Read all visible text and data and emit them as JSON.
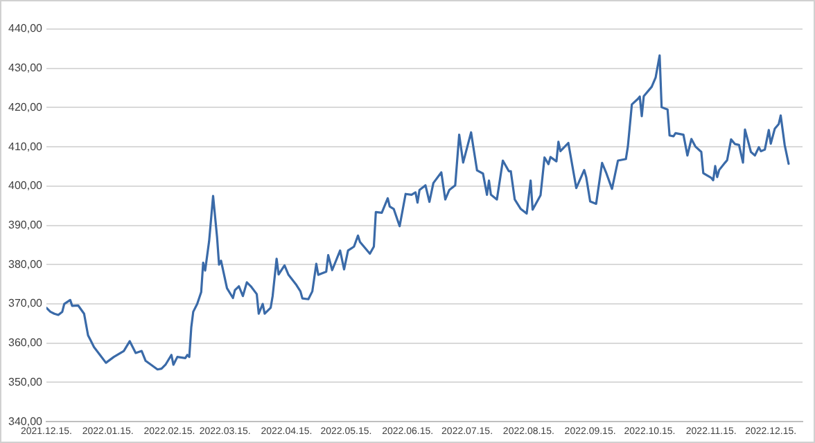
{
  "chart_data": {
    "type": "line",
    "grid": "y",
    "marker": "none",
    "line_style": "solid",
    "xlim": [
      "2021-12-15",
      "2022-12-31"
    ],
    "xticks": [
      {
        "value": "2021-12-15",
        "label": "2021.12.15."
      },
      {
        "value": "2022-01-15",
        "label": "2022.01.15."
      },
      {
        "value": "2022-02-15",
        "label": "2022.02.15."
      },
      {
        "value": "2022-03-15",
        "label": "2022.03.15."
      },
      {
        "value": "2022-04-15",
        "label": "2022.04.15."
      },
      {
        "value": "2022-05-15",
        "label": "2022.05.15."
      },
      {
        "value": "2022-06-15",
        "label": "2022.06.15."
      },
      {
        "value": "2022-07-15",
        "label": "2022.07.15."
      },
      {
        "value": "2022-08-15",
        "label": "2022.08.15."
      },
      {
        "value": "2022-09-15",
        "label": "2022.09.15."
      },
      {
        "value": "2022-10-15",
        "label": "2022.10.15."
      },
      {
        "value": "2022-11-15",
        "label": "2022.11.15."
      },
      {
        "value": "2022-12-15",
        "label": "2022.12.15."
      }
    ],
    "ylim": [
      340,
      440
    ],
    "yticks": [
      {
        "value": 340,
        "label": "340,00"
      },
      {
        "value": 350,
        "label": "350,00"
      },
      {
        "value": 360,
        "label": "360,00"
      },
      {
        "value": 370,
        "label": "370,00"
      },
      {
        "value": 380,
        "label": "380,00"
      },
      {
        "value": 390,
        "label": "390,00"
      },
      {
        "value": 400,
        "label": "400,00"
      },
      {
        "value": 410,
        "label": "410,00"
      },
      {
        "value": 420,
        "label": "420,00"
      },
      {
        "value": 430,
        "label": "430,00"
      },
      {
        "value": 440,
        "label": "440,00"
      }
    ],
    "x": [
      "2021-12-15",
      "2021-12-17",
      "2021-12-19",
      "2021-12-21",
      "2021-12-23",
      "2021-12-24",
      "2021-12-27",
      "2021-12-28",
      "2021-12-31",
      "2022-01-03",
      "2022-01-05",
      "2022-01-06",
      "2022-01-08",
      "2022-01-11",
      "2022-01-14",
      "2022-01-18",
      "2022-01-23",
      "2022-01-26",
      "2022-01-29",
      "2022-02-01",
      "2022-02-03",
      "2022-02-09",
      "2022-02-11",
      "2022-02-13",
      "2022-02-16",
      "2022-02-17",
      "2022-02-19",
      "2022-02-23",
      "2022-02-24",
      "2022-02-25",
      "2022-02-26",
      "2022-02-27",
      "2022-03-01",
      "2022-03-03",
      "2022-03-04",
      "2022-03-05",
      "2022-03-07",
      "2022-03-09",
      "2022-03-11",
      "2022-03-12",
      "2022-03-13",
      "2022-03-16",
      "2022-03-19",
      "2022-03-20",
      "2022-03-22",
      "2022-03-24",
      "2022-03-26",
      "2022-03-28",
      "2022-03-31",
      "2022-04-01",
      "2022-04-03",
      "2022-04-04",
      "2022-04-07",
      "2022-04-08",
      "2022-04-10",
      "2022-04-11",
      "2022-04-14",
      "2022-04-16",
      "2022-04-20",
      "2022-04-22",
      "2022-04-23",
      "2022-04-26",
      "2022-04-28",
      "2022-04-30",
      "2022-05-01",
      "2022-05-05",
      "2022-05-06",
      "2022-05-08",
      "2022-05-12",
      "2022-05-14",
      "2022-05-16",
      "2022-05-19",
      "2022-05-21",
      "2022-05-22",
      "2022-05-27",
      "2022-05-29",
      "2022-05-30",
      "2022-06-02",
      "2022-06-05",
      "2022-06-06",
      "2022-06-08",
      "2022-06-11",
      "2022-06-14",
      "2022-06-17",
      "2022-06-19",
      "2022-06-20",
      "2022-06-21",
      "2022-06-24",
      "2022-06-26",
      "2022-06-28",
      "2022-07-02",
      "2022-07-04",
      "2022-07-06",
      "2022-07-09",
      "2022-07-11",
      "2022-07-13",
      "2022-07-17",
      "2022-07-18",
      "2022-07-20",
      "2022-07-23",
      "2022-07-25",
      "2022-07-26",
      "2022-07-27",
      "2022-07-30",
      "2022-08-02",
      "2022-08-05",
      "2022-08-06",
      "2022-08-08",
      "2022-08-11",
      "2022-08-14",
      "2022-08-16",
      "2022-08-17",
      "2022-08-21",
      "2022-08-23",
      "2022-08-25",
      "2022-08-26",
      "2022-08-29",
      "2022-08-30",
      "2022-08-31",
      "2022-09-04",
      "2022-09-08",
      "2022-09-12",
      "2022-09-13",
      "2022-09-15",
      "2022-09-18",
      "2022-09-21",
      "2022-09-23",
      "2022-09-26",
      "2022-09-29",
      "2022-10-03",
      "2022-10-04",
      "2022-10-06",
      "2022-10-09",
      "2022-10-10",
      "2022-10-11",
      "2022-10-12",
      "2022-10-16",
      "2022-10-18",
      "2022-10-20",
      "2022-10-21",
      "2022-10-24",
      "2022-10-25",
      "2022-10-27",
      "2022-10-28",
      "2022-11-01",
      "2022-11-03",
      "2022-11-05",
      "2022-11-07",
      "2022-11-10",
      "2022-11-11",
      "2022-11-15",
      "2022-11-16",
      "2022-11-17",
      "2022-11-18",
      "2022-11-19",
      "2022-11-22",
      "2022-11-23",
      "2022-11-25",
      "2022-11-27",
      "2022-11-29",
      "2022-12-01",
      "2022-12-02",
      "2022-12-05",
      "2022-12-07",
      "2022-12-09",
      "2022-12-10",
      "2022-12-12",
      "2022-12-14",
      "2022-12-15",
      "2022-12-17",
      "2022-12-19",
      "2022-12-20",
      "2022-12-22",
      "2022-12-24"
    ],
    "series": [
      {
        "color": "#3a6aa8",
        "values": [
          369,
          368,
          367.5,
          367.2,
          368,
          370,
          371,
          369.5,
          369.6,
          367.5,
          362,
          361,
          359,
          357,
          355,
          356.5,
          358,
          360.5,
          357.5,
          358,
          355.5,
          353.3,
          353.5,
          354.5,
          357,
          354.5,
          356.5,
          356.2,
          357,
          356.5,
          364,
          368,
          370,
          373,
          380.5,
          378.5,
          386,
          397.5,
          387,
          380,
          381,
          374,
          371.5,
          373.5,
          374.5,
          372,
          375.5,
          374.5,
          372.5,
          367.5,
          370,
          367.5,
          369,
          372,
          381.5,
          377.5,
          379.8,
          377.4,
          374.8,
          373.2,
          371.4,
          371.2,
          373.2,
          380.2,
          377.4,
          378.2,
          382.4,
          378.6,
          383.6,
          378.8,
          383.6,
          384.6,
          387.4,
          385.8,
          382.8,
          384.6,
          393.4,
          393.2,
          396.9,
          394.8,
          394.2,
          389.8,
          398,
          397.8,
          398.4,
          395.8,
          399,
          400.2,
          396,
          400.8,
          403.5,
          396.6,
          399,
          400.2,
          413.1,
          406,
          413.7,
          410.4,
          404,
          403.2,
          397.8,
          401.4,
          397.8,
          396.6,
          406.5,
          403.8,
          403.8,
          396.6,
          394.2,
          393,
          401.4,
          394,
          397.7,
          407.3,
          405.6,
          407.4,
          406.3,
          411.3,
          408.9,
          411,
          399.5,
          404.1,
          402.3,
          396.1,
          395.5,
          405.9,
          403.5,
          399.3,
          406.5,
          406.9,
          410.1,
          420.8,
          422.2,
          422.8,
          417.8,
          422.9,
          425.3,
          427.7,
          433.3,
          420.1,
          419.5,
          412.9,
          412.7,
          413.5,
          413.1,
          407.8,
          412,
          410.1,
          408.7,
          403.3,
          402.1,
          401.5,
          405.1,
          402.3,
          404.1,
          406,
          406.6,
          411.9,
          410.7,
          410.5,
          406,
          414.4,
          408.7,
          407.8,
          409.9,
          408.9,
          409.3,
          414.3,
          410.8,
          414.6,
          415.8,
          418,
          410.5,
          405.7
        ]
      }
    ]
  }
}
